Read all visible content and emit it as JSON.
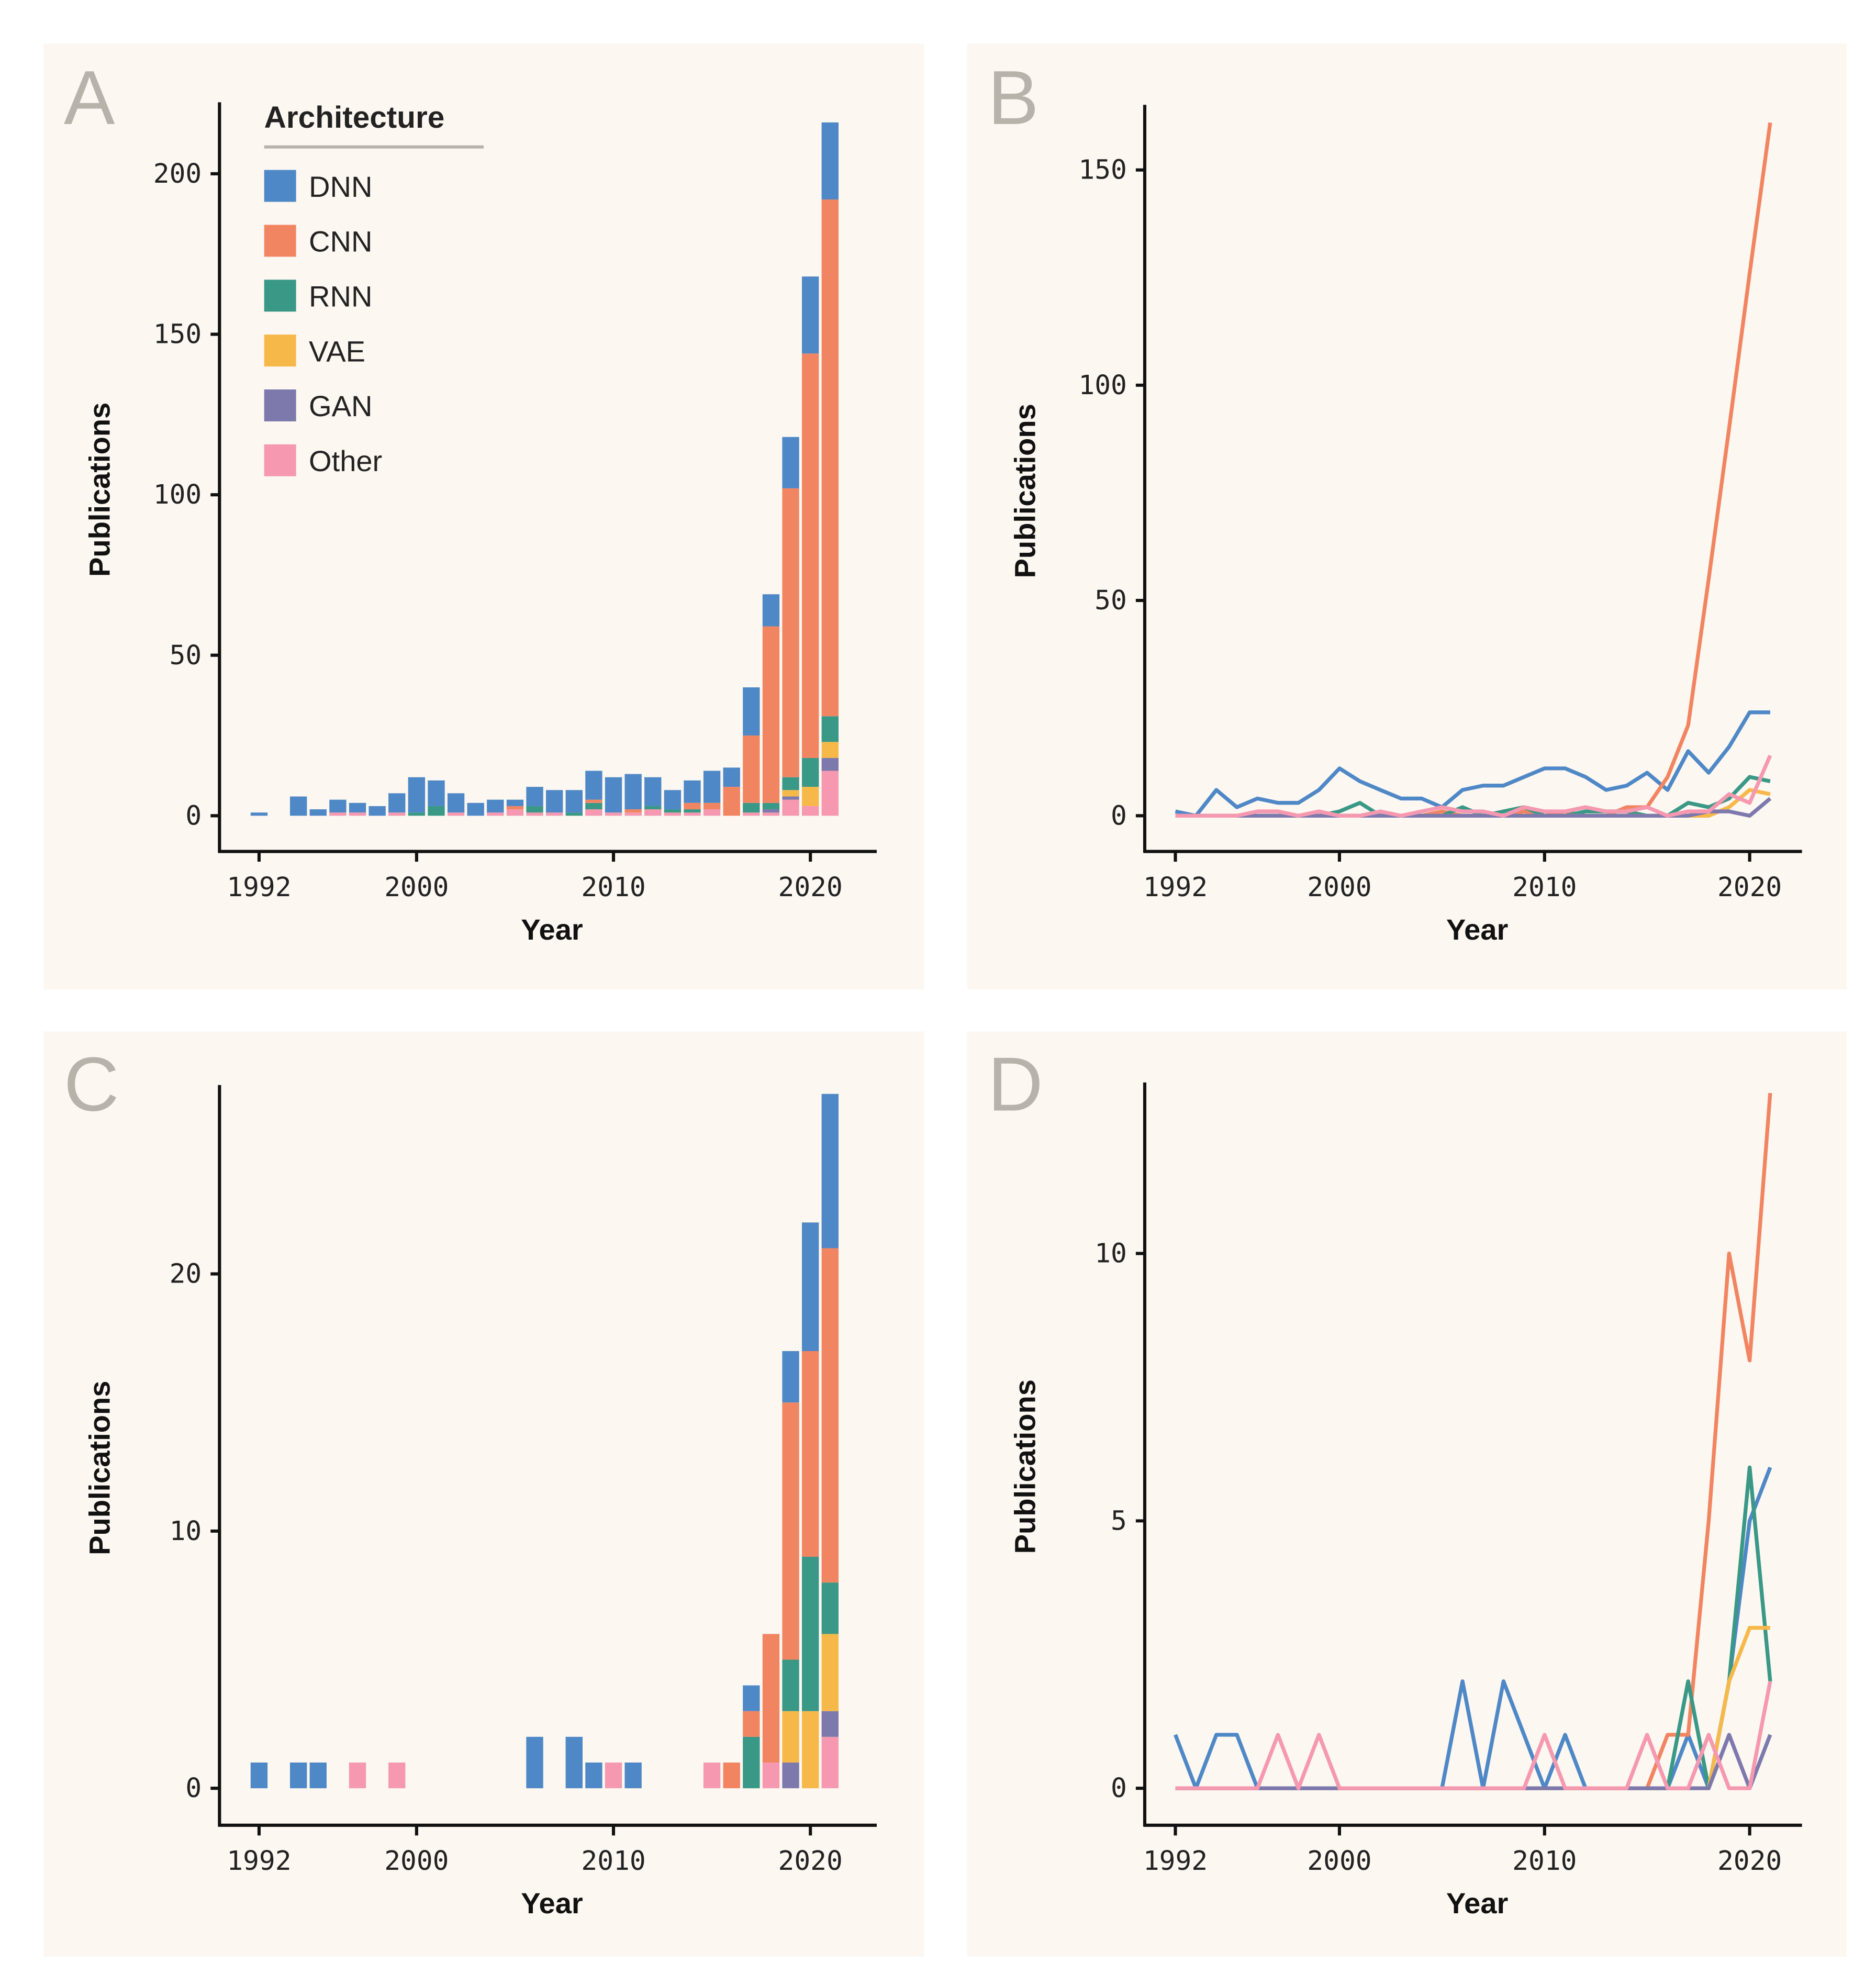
{
  "legend": {
    "title": "Architecture",
    "items": [
      "DNN",
      "CNN",
      "RNN",
      "VAE",
      "GAN",
      "Other"
    ]
  },
  "colors": {
    "DNN": "#4f88c6",
    "CNN": "#f28561",
    "RNN": "#3a9886",
    "VAE": "#f7b84a",
    "GAN": "#7d79ad",
    "Other": "#f598b0",
    "panel_background": "#fcf7f1",
    "panel_letter": "#b7b2aa"
  },
  "chart_data": [
    {
      "panel": "A",
      "type": "bar",
      "stacked": true,
      "xlabel": "Year",
      "ylabel": "Publications",
      "xticks": [
        1992,
        2000,
        2010,
        2020
      ],
      "yticks": [
        0,
        50,
        100,
        150,
        200
      ],
      "x": [
        1992,
        1993,
        1994,
        1995,
        1996,
        1997,
        1998,
        1999,
        2000,
        2001,
        2002,
        2003,
        2004,
        2005,
        2006,
        2007,
        2008,
        2009,
        2010,
        2011,
        2012,
        2013,
        2014,
        2015,
        2016,
        2017,
        2018,
        2019,
        2020,
        2021
      ],
      "legend": "top-left",
      "series": [
        {
          "name": "Other",
          "values": [
            0,
            0,
            0,
            0,
            1,
            1,
            0,
            1,
            0,
            0,
            1,
            0,
            1,
            2,
            1,
            1,
            0,
            2,
            1,
            1,
            2,
            1,
            1,
            2,
            0,
            1,
            1,
            5,
            3,
            14
          ]
        },
        {
          "name": "GAN",
          "values": [
            0,
            0,
            0,
            0,
            0,
            0,
            0,
            0,
            0,
            0,
            0,
            0,
            0,
            0,
            0,
            0,
            0,
            0,
            0,
            0,
            0,
            0,
            0,
            0,
            0,
            0,
            1,
            1,
            0,
            4
          ]
        },
        {
          "name": "VAE",
          "values": [
            0,
            0,
            0,
            0,
            0,
            0,
            0,
            0,
            0,
            0,
            0,
            0,
            0,
            0,
            0,
            0,
            0,
            0,
            0,
            0,
            0,
            0,
            0,
            0,
            0,
            0,
            0,
            2,
            6,
            5
          ]
        },
        {
          "name": "RNN",
          "values": [
            0,
            0,
            0,
            0,
            0,
            0,
            0,
            0,
            1,
            3,
            0,
            0,
            0,
            0,
            2,
            0,
            1,
            2,
            0,
            0,
            1,
            1,
            1,
            0,
            0,
            3,
            2,
            4,
            9,
            8
          ]
        },
        {
          "name": "CNN",
          "values": [
            0,
            0,
            0,
            0,
            0,
            0,
            0,
            0,
            0,
            0,
            0,
            0,
            0,
            1,
            0,
            0,
            0,
            1,
            0,
            1,
            0,
            0,
            2,
            2,
            9,
            21,
            55,
            90,
            126,
            161
          ]
        },
        {
          "name": "DNN",
          "values": [
            1,
            0,
            6,
            2,
            4,
            3,
            3,
            6,
            11,
            8,
            6,
            4,
            4,
            2,
            6,
            7,
            7,
            9,
            11,
            11,
            9,
            6,
            7,
            10,
            6,
            15,
            10,
            16,
            24,
            24
          ]
        }
      ]
    },
    {
      "panel": "B",
      "type": "line",
      "xlabel": "Year",
      "ylabel": "Publications",
      "xticks": [
        1992,
        2000,
        2010,
        2020
      ],
      "yticks": [
        0,
        50,
        100,
        150
      ],
      "x": [
        1992,
        1993,
        1994,
        1995,
        1996,
        1997,
        1998,
        1999,
        2000,
        2001,
        2002,
        2003,
        2004,
        2005,
        2006,
        2007,
        2008,
        2009,
        2010,
        2011,
        2012,
        2013,
        2014,
        2015,
        2016,
        2017,
        2018,
        2019,
        2020,
        2021
      ],
      "series": [
        {
          "name": "DNN",
          "values": [
            1,
            0,
            6,
            2,
            4,
            3,
            3,
            6,
            11,
            8,
            6,
            4,
            4,
            2,
            6,
            7,
            7,
            9,
            11,
            11,
            9,
            6,
            7,
            10,
            6,
            15,
            10,
            16,
            24,
            24
          ]
        },
        {
          "name": "CNN",
          "values": [
            0,
            0,
            0,
            0,
            0,
            0,
            0,
            0,
            0,
            0,
            0,
            0,
            0,
            1,
            0,
            0,
            0,
            1,
            0,
            1,
            0,
            0,
            2,
            2,
            9,
            21,
            55,
            90,
            126,
            161
          ]
        },
        {
          "name": "RNN",
          "values": [
            0,
            0,
            0,
            0,
            0,
            0,
            0,
            0,
            1,
            3,
            0,
            0,
            0,
            0,
            2,
            0,
            1,
            2,
            0,
            0,
            1,
            1,
            1,
            0,
            0,
            3,
            2,
            4,
            9,
            8
          ]
        },
        {
          "name": "VAE",
          "values": [
            0,
            0,
            0,
            0,
            0,
            0,
            0,
            0,
            0,
            0,
            0,
            0,
            0,
            0,
            0,
            0,
            0,
            0,
            0,
            0,
            0,
            0,
            0,
            0,
            0,
            0,
            0,
            2,
            6,
            5
          ]
        },
        {
          "name": "GAN",
          "values": [
            0,
            0,
            0,
            0,
            0,
            0,
            0,
            0,
            0,
            0,
            0,
            0,
            0,
            0,
            0,
            0,
            0,
            0,
            0,
            0,
            0,
            0,
            0,
            0,
            0,
            0,
            1,
            1,
            0,
            4
          ]
        },
        {
          "name": "Other",
          "values": [
            0,
            0,
            0,
            0,
            1,
            1,
            0,
            1,
            0,
            0,
            1,
            0,
            1,
            2,
            1,
            1,
            0,
            2,
            1,
            1,
            2,
            1,
            1,
            2,
            0,
            1,
            1,
            5,
            3,
            14
          ]
        }
      ]
    },
    {
      "panel": "C",
      "type": "bar",
      "stacked": true,
      "xlabel": "Year",
      "ylabel": "Publications",
      "xticks": [
        1992,
        2000,
        2010,
        2020
      ],
      "yticks": [
        0,
        10,
        20
      ],
      "x": [
        1992,
        1993,
        1994,
        1995,
        1996,
        1997,
        1998,
        1999,
        2000,
        2001,
        2002,
        2003,
        2004,
        2005,
        2006,
        2007,
        2008,
        2009,
        2010,
        2011,
        2012,
        2013,
        2014,
        2015,
        2016,
        2017,
        2018,
        2019,
        2020,
        2021
      ],
      "series": [
        {
          "name": "Other",
          "values": [
            0,
            0,
            0,
            0,
            0,
            1,
            0,
            1,
            0,
            0,
            0,
            0,
            0,
            0,
            0,
            0,
            0,
            0,
            1,
            0,
            0,
            0,
            0,
            1,
            0,
            0,
            1,
            0,
            0,
            2
          ]
        },
        {
          "name": "GAN",
          "values": [
            0,
            0,
            0,
            0,
            0,
            0,
            0,
            0,
            0,
            0,
            0,
            0,
            0,
            0,
            0,
            0,
            0,
            0,
            0,
            0,
            0,
            0,
            0,
            0,
            0,
            0,
            0,
            1,
            0,
            1
          ]
        },
        {
          "name": "VAE",
          "values": [
            0,
            0,
            0,
            0,
            0,
            0,
            0,
            0,
            0,
            0,
            0,
            0,
            0,
            0,
            0,
            0,
            0,
            0,
            0,
            0,
            0,
            0,
            0,
            0,
            0,
            0,
            0,
            2,
            3,
            3
          ]
        },
        {
          "name": "RNN",
          "values": [
            0,
            0,
            0,
            0,
            0,
            0,
            0,
            0,
            0,
            0,
            0,
            0,
            0,
            0,
            0,
            0,
            0,
            0,
            0,
            0,
            0,
            0,
            0,
            0,
            0,
            2,
            0,
            2,
            6,
            2
          ]
        },
        {
          "name": "CNN",
          "values": [
            0,
            0,
            0,
            0,
            0,
            0,
            0,
            0,
            0,
            0,
            0,
            0,
            0,
            0,
            0,
            0,
            0,
            0,
            0,
            0,
            0,
            0,
            0,
            0,
            1,
            1,
            5,
            10,
            8,
            13
          ]
        },
        {
          "name": "DNN",
          "values": [
            1,
            0,
            1,
            1,
            0,
            0,
            0,
            0,
            0,
            0,
            0,
            0,
            0,
            0,
            2,
            0,
            2,
            1,
            0,
            1,
            0,
            0,
            0,
            0,
            0,
            1,
            0,
            2,
            5,
            6
          ]
        }
      ]
    },
    {
      "panel": "D",
      "type": "line",
      "xlabel": "Year",
      "ylabel": "Publications",
      "xticks": [
        1992,
        2000,
        2010,
        2020
      ],
      "yticks": [
        0,
        5,
        10
      ],
      "x": [
        1992,
        1993,
        1994,
        1995,
        1996,
        1997,
        1998,
        1999,
        2000,
        2001,
        2002,
        2003,
        2004,
        2005,
        2006,
        2007,
        2008,
        2009,
        2010,
        2011,
        2012,
        2013,
        2014,
        2015,
        2016,
        2017,
        2018,
        2019,
        2020,
        2021
      ],
      "series": [
        {
          "name": "DNN",
          "values": [
            1,
            0,
            1,
            1,
            0,
            0,
            0,
            0,
            0,
            0,
            0,
            0,
            0,
            0,
            2,
            0,
            2,
            1,
            0,
            1,
            0,
            0,
            0,
            0,
            0,
            1,
            0,
            2,
            5,
            6
          ]
        },
        {
          "name": "CNN",
          "values": [
            0,
            0,
            0,
            0,
            0,
            0,
            0,
            0,
            0,
            0,
            0,
            0,
            0,
            0,
            0,
            0,
            0,
            0,
            0,
            0,
            0,
            0,
            0,
            0,
            1,
            1,
            5,
            10,
            8,
            13
          ]
        },
        {
          "name": "RNN",
          "values": [
            0,
            0,
            0,
            0,
            0,
            0,
            0,
            0,
            0,
            0,
            0,
            0,
            0,
            0,
            0,
            0,
            0,
            0,
            0,
            0,
            0,
            0,
            0,
            0,
            0,
            2,
            0,
            2,
            6,
            2
          ]
        },
        {
          "name": "VAE",
          "values": [
            0,
            0,
            0,
            0,
            0,
            0,
            0,
            0,
            0,
            0,
            0,
            0,
            0,
            0,
            0,
            0,
            0,
            0,
            0,
            0,
            0,
            0,
            0,
            0,
            0,
            0,
            0,
            2,
            3,
            3
          ]
        },
        {
          "name": "GAN",
          "values": [
            0,
            0,
            0,
            0,
            0,
            0,
            0,
            0,
            0,
            0,
            0,
            0,
            0,
            0,
            0,
            0,
            0,
            0,
            0,
            0,
            0,
            0,
            0,
            0,
            0,
            0,
            0,
            1,
            0,
            1
          ]
        },
        {
          "name": "Other",
          "values": [
            0,
            0,
            0,
            0,
            0,
            1,
            0,
            1,
            0,
            0,
            0,
            0,
            0,
            0,
            0,
            0,
            0,
            0,
            1,
            0,
            0,
            0,
            0,
            1,
            0,
            0,
            1,
            0,
            0,
            2
          ]
        }
      ]
    }
  ]
}
